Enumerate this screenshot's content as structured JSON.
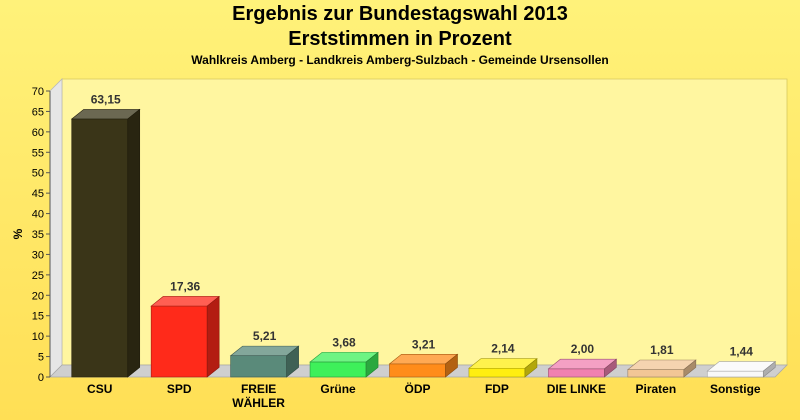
{
  "chart_data": {
    "type": "bar",
    "title": [
      "Ergebnis zur Bundestagswahl 2013",
      "Erststimmen in Prozent"
    ],
    "subtitle": "Wahlkreis Amberg - Landkreis Amberg-Sulzbach - Gemeinde Ursensollen",
    "xlabel": "",
    "ylabel": "%",
    "ylim": [
      0,
      70
    ],
    "yticks": [
      0,
      5,
      10,
      15,
      20,
      25,
      30,
      35,
      40,
      45,
      50,
      55,
      60,
      65,
      70
    ],
    "grid": false,
    "legend": "none",
    "categories": [
      "CSU",
      "SPD",
      "FREIE WÄHLER",
      "Grüne",
      "ÖDP",
      "FDP",
      "DIE LINKE",
      "Piraten",
      "Sonstige"
    ],
    "category_lines": [
      [
        "CSU"
      ],
      [
        "SPD"
      ],
      [
        "FREIE",
        "WÄHLER"
      ],
      [
        "Grüne"
      ],
      [
        "ÖDP"
      ],
      [
        "FDP"
      ],
      [
        "DIE LINKE"
      ],
      [
        "Piraten"
      ],
      [
        "Sonstige"
      ]
    ],
    "values": [
      63.15,
      17.36,
      5.21,
      3.68,
      3.21,
      2.14,
      2.0,
      1.81,
      1.44
    ],
    "value_labels": [
      "63,15",
      "17,36",
      "5,21",
      "3,68",
      "3,21",
      "2,14",
      "2,00",
      "1,81",
      "1,44"
    ],
    "colors": [
      "#3a3518",
      "#ff2a1a",
      "#5a8a7a",
      "#3ef05a",
      "#ff8c1a",
      "#ffee10",
      "#f080b0",
      "#f2c696",
      "#f8f8f8"
    ]
  }
}
